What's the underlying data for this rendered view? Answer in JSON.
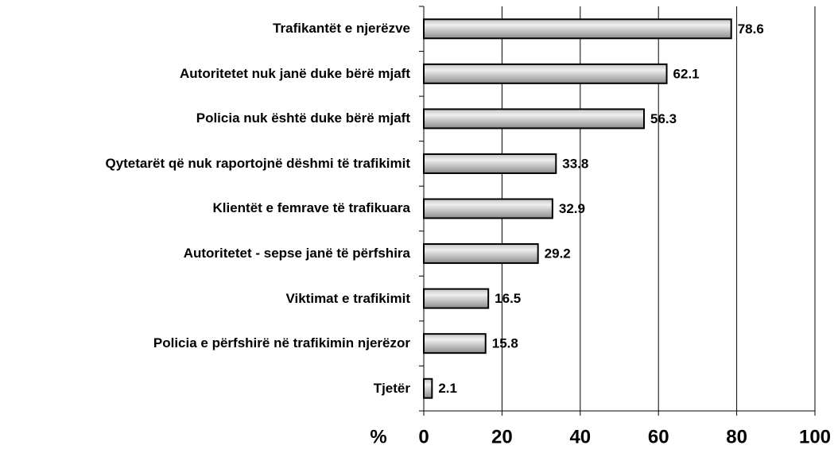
{
  "chart_data": {
    "type": "barh",
    "categories": [
      "Trafikantët e njerëzve",
      "Autoritetet nuk janë duke bërë mjaft",
      "Policia nuk është duke bërë mjaft",
      "Qytetarët që nuk raportojnë dëshmi të trafikimit",
      "Klientët e femrave të trafikuara",
      "Autoritetet - sepse janë të përfshira",
      "Viktimat e trafikimit",
      "Policia e përfshirë në trafikimin njerëzor",
      "Tjetër"
    ],
    "values": [
      78.6,
      62.1,
      56.3,
      33.8,
      32.9,
      29.2,
      16.5,
      15.8,
      2.1
    ],
    "color": "#b0b0b0",
    "x_label": "%",
    "xlim": [
      0,
      100
    ],
    "xticks": [
      0,
      20,
      40,
      60,
      80,
      100
    ],
    "grid": true
  }
}
